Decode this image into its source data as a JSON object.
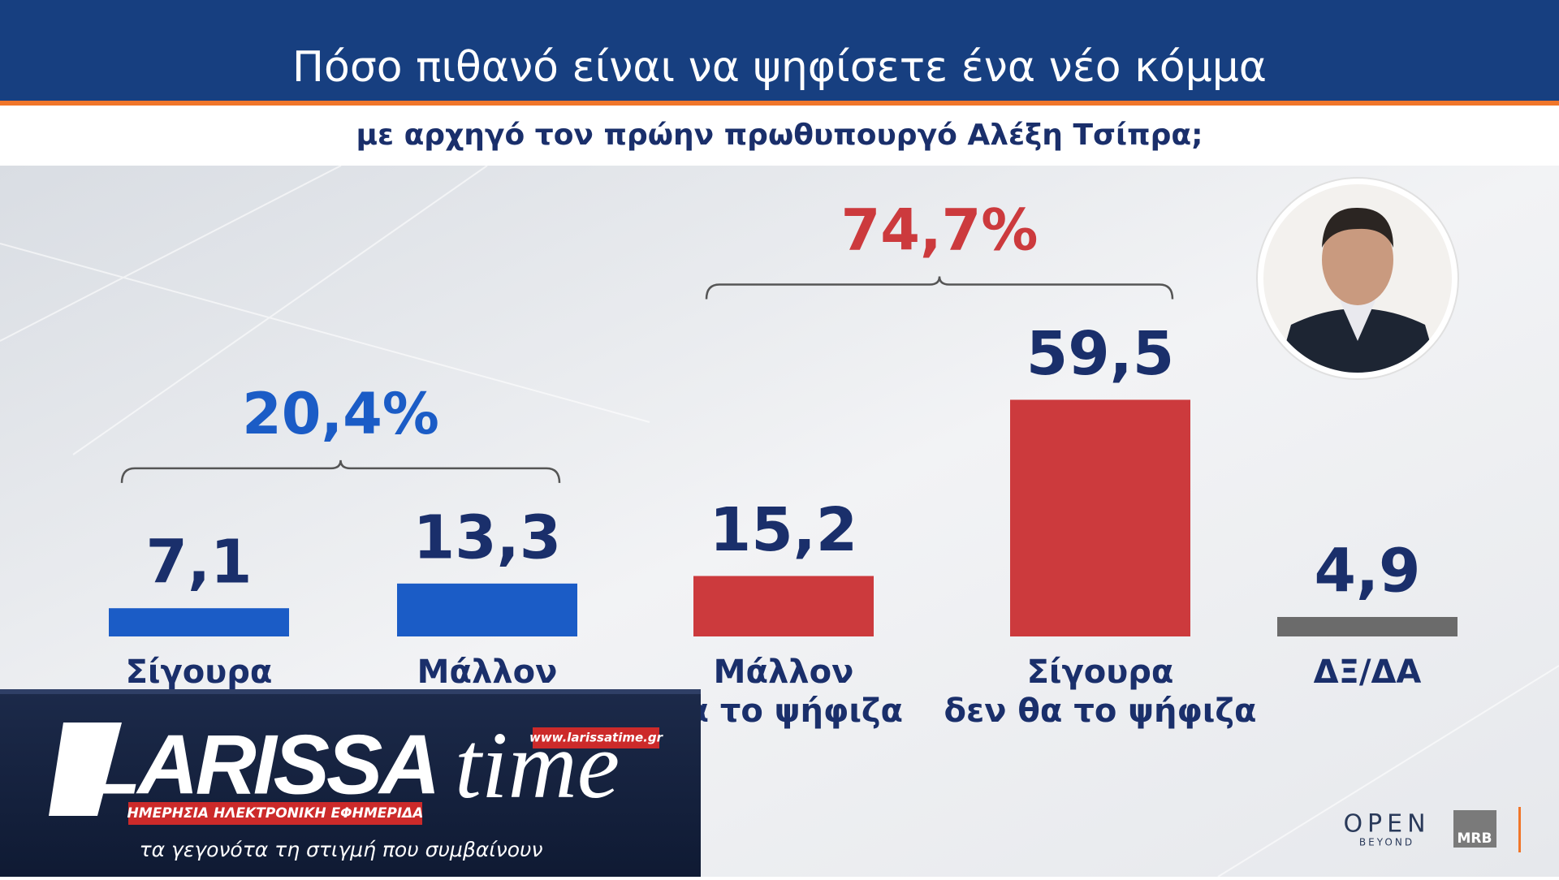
{
  "chart_data": {
    "type": "bar",
    "title": "Πόσο πιθανό είναι να ψηφίσετε ένα νέο κόμμα",
    "subtitle": "με αρχηγό τον πρώην πρωθυπουργό Αλέξη Τσίπρα;",
    "categories": [
      "Σίγουρα",
      "Μάλλον",
      "Μάλλον\nθα το ψήφιζα",
      "Σίγουρα\nδεν θα το ψήφιζα",
      "ΔΞ/ΔΑ"
    ],
    "values": [
      7.1,
      13.3,
      15.2,
      59.5,
      4.9
    ],
    "value_labels": [
      "7,1",
      "13,3",
      "15,2",
      "59,5",
      "4,9"
    ],
    "colors": [
      "#1b5cc6",
      "#1b5cc6",
      "#cc3a3d",
      "#cc3a3d",
      "#6b6b6b"
    ],
    "groups": [
      {
        "label": "20,4%",
        "value": 20.4,
        "color": "#1b5cc6"
      },
      {
        "label": "74,7%",
        "value": 74.7,
        "color": "#cc3a3d"
      }
    ]
  },
  "logo": {
    "name": "LARISSA",
    "suffix": "time",
    "url": "www.larissatime.gr",
    "tagline": "ΗΜΕΡΗΣΙΑ ΗΛΕΚΤΡΟΝΙΚΗ ΕΦΗΜΕΡΙΔΑ",
    "slogan": "τα γεγονότα τη στιγμή που συμβαίνουν"
  },
  "brand": {
    "channel": "OPEN",
    "channel_sub": "BEYOND",
    "pollster": "MRB"
  }
}
